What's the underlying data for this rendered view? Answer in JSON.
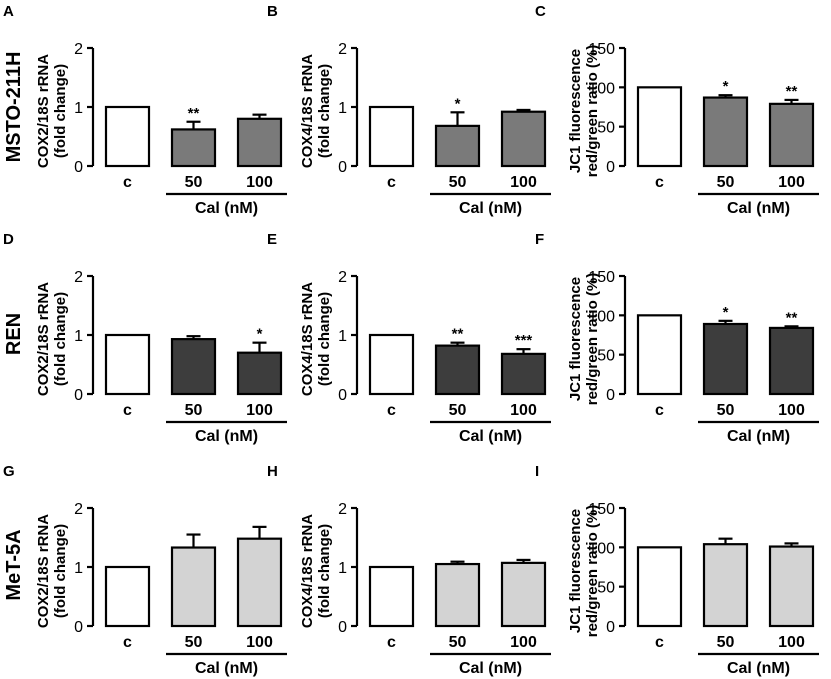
{
  "rows": [
    {
      "label": "MSTO-211H",
      "fill": "#7a7a7a"
    },
    {
      "label": "REN",
      "fill": "#3d3d3d"
    },
    {
      "label": "MeT-5A",
      "fill": "#d3d3d3"
    }
  ],
  "control_fill": "#ffffff",
  "chart_data": [
    {
      "panel": "A",
      "type": "bar",
      "categories": [
        "c",
        "50",
        "100"
      ],
      "values": [
        1.0,
        0.62,
        0.8
      ],
      "errors": [
        0,
        0.13,
        0.07
      ],
      "significance": [
        "",
        "**",
        ""
      ],
      "ylabel": "COX2/18S rRNA",
      "ylabel2": "(fold change)",
      "ylim": [
        0,
        2
      ],
      "yticks": [
        "0",
        "1",
        "2"
      ],
      "group_label": "Cal (nM)",
      "ytick_values": [
        0,
        1,
        2
      ]
    },
    {
      "panel": "B",
      "type": "bar",
      "categories": [
        "c",
        "50",
        "100"
      ],
      "values": [
        1.0,
        0.68,
        0.92
      ],
      "errors": [
        0,
        0.23,
        0.03
      ],
      "significance": [
        "",
        "*",
        ""
      ],
      "ylabel": "COX4/18S rRNA",
      "ylabel2": "(fold change)",
      "ylim": [
        0,
        2
      ],
      "yticks": [
        "0",
        "1",
        "2"
      ],
      "group_label": "Cal (nM)",
      "ytick_values": [
        0,
        1,
        2
      ]
    },
    {
      "panel": "C",
      "type": "bar",
      "categories": [
        "c",
        "50",
        "100"
      ],
      "values": [
        100,
        87,
        79
      ],
      "errors": [
        0,
        3,
        5
      ],
      "significance": [
        "",
        "*",
        "**"
      ],
      "ylabel": "JC1 fluorescence",
      "ylabel2": "red/green ratio (%)",
      "ylim": [
        0,
        150
      ],
      "yticks": [
        "0",
        "50",
        "100",
        "150"
      ],
      "group_label": "Cal (nM)",
      "ytick_values": [
        0,
        50,
        100,
        150
      ]
    },
    {
      "panel": "D",
      "type": "bar",
      "categories": [
        "c",
        "50",
        "100"
      ],
      "values": [
        1.0,
        0.93,
        0.7
      ],
      "errors": [
        0,
        0.05,
        0.17
      ],
      "significance": [
        "",
        "",
        "*"
      ],
      "ylabel": "COX2/18S rRNA",
      "ylabel2": "(fold change)",
      "ylim": [
        0,
        2
      ],
      "yticks": [
        "0",
        "1",
        "2"
      ],
      "group_label": "Cal (nM)",
      "ytick_values": [
        0,
        1,
        2
      ]
    },
    {
      "panel": "E",
      "type": "bar",
      "categories": [
        "c",
        "50",
        "100"
      ],
      "values": [
        1.0,
        0.82,
        0.68
      ],
      "errors": [
        0,
        0.05,
        0.08
      ],
      "significance": [
        "",
        "**",
        "***"
      ],
      "ylabel": "COX4/18S rRNA",
      "ylabel2": "(fold change)",
      "ylim": [
        0,
        2
      ],
      "yticks": [
        "0",
        "1",
        "2"
      ],
      "group_label": "Cal (nM)",
      "ytick_values": [
        0,
        1,
        2
      ]
    },
    {
      "panel": "F",
      "type": "bar",
      "categories": [
        "c",
        "50",
        "100"
      ],
      "values": [
        100,
        89,
        84
      ],
      "errors": [
        0,
        4,
        2
      ],
      "significance": [
        "",
        "*",
        "**"
      ],
      "ylabel": "JC1 fluorescence",
      "ylabel2": "red/green ratio (%)",
      "ylim": [
        0,
        150
      ],
      "yticks": [
        "0",
        "50",
        "100",
        "150"
      ],
      "group_label": "Cal (nM)",
      "ytick_values": [
        0,
        50,
        100,
        150
      ]
    },
    {
      "panel": "G",
      "type": "bar",
      "categories": [
        "c",
        "50",
        "100"
      ],
      "values": [
        1.0,
        1.33,
        1.48
      ],
      "errors": [
        0,
        0.22,
        0.2
      ],
      "significance": [
        "",
        "",
        ""
      ],
      "ylabel": "COX2/18S rRNA",
      "ylabel2": "(fold change)",
      "ylim": [
        0,
        2
      ],
      "yticks": [
        "0",
        "1",
        "2"
      ],
      "group_label": "Cal (nM)",
      "ytick_values": [
        0,
        1,
        2
      ]
    },
    {
      "panel": "H",
      "type": "bar",
      "categories": [
        "c",
        "50",
        "100"
      ],
      "values": [
        1.0,
        1.05,
        1.07
      ],
      "errors": [
        0,
        0.04,
        0.05
      ],
      "significance": [
        "",
        "",
        ""
      ],
      "ylabel": "COX4/18S rRNA",
      "ylabel2": "(fold change)",
      "ylim": [
        0,
        2
      ],
      "yticks": [
        "0",
        "1",
        "2"
      ],
      "group_label": "Cal (nM)",
      "ytick_values": [
        0,
        1,
        2
      ]
    },
    {
      "panel": "I",
      "type": "bar",
      "categories": [
        "c",
        "50",
        "100"
      ],
      "values": [
        100,
        104,
        101
      ],
      "errors": [
        0,
        7,
        4
      ],
      "significance": [
        "",
        "",
        ""
      ],
      "ylabel": "JC1 fluorescence",
      "ylabel2": "red/green ratio (%)",
      "ylim": [
        0,
        150
      ],
      "yticks": [
        "0",
        "50",
        "100",
        "150"
      ],
      "group_label": "Cal (nM)",
      "ytick_values": [
        0,
        50,
        100,
        150
      ]
    }
  ]
}
